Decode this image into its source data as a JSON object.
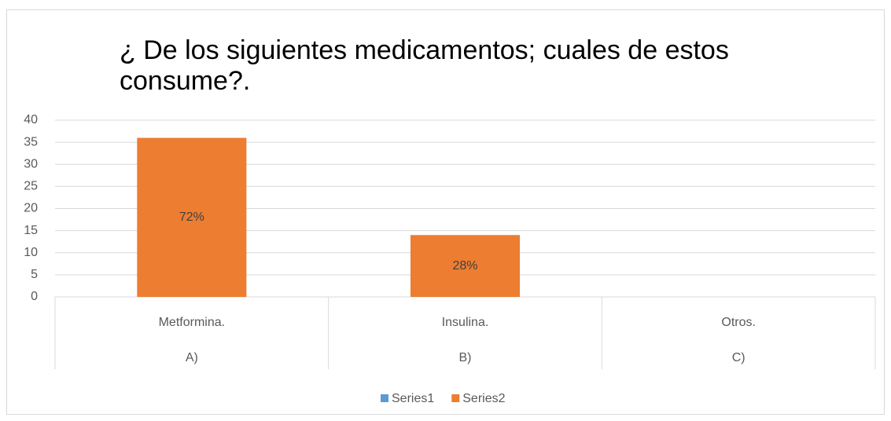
{
  "chart_data": {
    "type": "bar",
    "title": "¿ De los siguientes medicamentos; cuales de estos consume?.",
    "categories": [
      "Metformina.",
      "Insulina.",
      "Otros."
    ],
    "category_groups": [
      "A)",
      "B)",
      "C)"
    ],
    "series": [
      {
        "name": "Series1",
        "color": "#5b9bd5",
        "values": [
          null,
          null,
          null
        ]
      },
      {
        "name": "Series2",
        "color": "#ed7d31",
        "values": [
          36,
          14,
          0
        ],
        "bar_labels": [
          "72%",
          "28%",
          null
        ]
      }
    ],
    "ylim": [
      0,
      40
    ],
    "yticks": [
      0,
      5,
      10,
      15,
      20,
      25,
      30,
      35,
      40
    ],
    "grid": true,
    "legend": "bottom"
  }
}
